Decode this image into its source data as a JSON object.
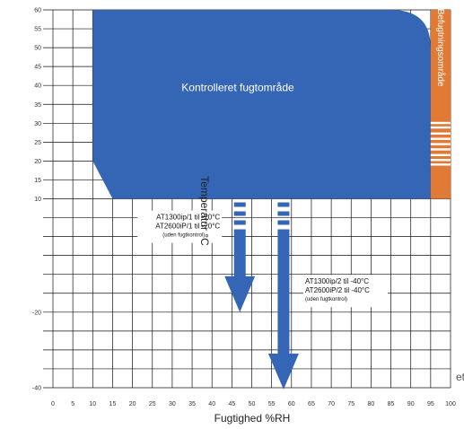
{
  "page": {
    "edge_fragment": "et"
  },
  "chart_data": {
    "type": "area",
    "xlabel": "Fugtighed %RH",
    "ylabel": "Temperatur °C",
    "xlim": [
      0,
      100
    ],
    "ylim": [
      -40,
      60
    ],
    "grid": true,
    "x_ticks": [
      "0",
      "5",
      "10",
      "15",
      "20",
      "25",
      "30",
      "35",
      "40",
      "45",
      "50",
      "55",
      "60",
      "65",
      "70",
      "75",
      "80",
      "85",
      "90",
      "95",
      "100"
    ],
    "y_ticks": [
      {
        "value": 60,
        "label": "60"
      },
      {
        "value": 55,
        "label": "55"
      },
      {
        "value": 50,
        "label": "50"
      },
      {
        "value": 45,
        "label": "45"
      },
      {
        "value": 40,
        "label": "40"
      },
      {
        "value": 35,
        "label": "35"
      },
      {
        "value": 30,
        "label": "30"
      },
      {
        "value": 25,
        "label": "25"
      },
      {
        "value": 20,
        "label": "20"
      },
      {
        "value": 15,
        "label": "15"
      },
      {
        "value": 10,
        "label": "10"
      },
      {
        "value": -20,
        "label": "-20"
      },
      {
        "value": -40,
        "label": "-40"
      }
    ],
    "controlled_region": {
      "label": "Kontrolleret fugtområde",
      "color": "#3565b5",
      "polygon": [
        [
          10,
          60
        ],
        [
          85,
          60
        ],
        [
          95,
          50
        ],
        [
          95,
          10
        ],
        [
          15,
          10
        ],
        [
          10,
          20
        ]
      ]
    },
    "humidification_region": {
      "label": "Befugtningsområde",
      "color": "#e07a35",
      "x": [
        95,
        100
      ],
      "y": [
        10,
        60
      ]
    },
    "arrows": [
      {
        "x": 47,
        "y_from": 10,
        "y_to": -20,
        "lines": [
          "AT1300ip/1 til -20°C",
          "AT2600iP/1 til -20°C"
        ],
        "note": "(uden fugtkontrol)"
      },
      {
        "x": 58,
        "y_from": 10,
        "y_to": -40,
        "lines": [
          "AT1300ip/2 til -40°C",
          "AT2600iP/2 til -40°C"
        ],
        "note": "(uden fugtkontrol)"
      }
    ]
  }
}
